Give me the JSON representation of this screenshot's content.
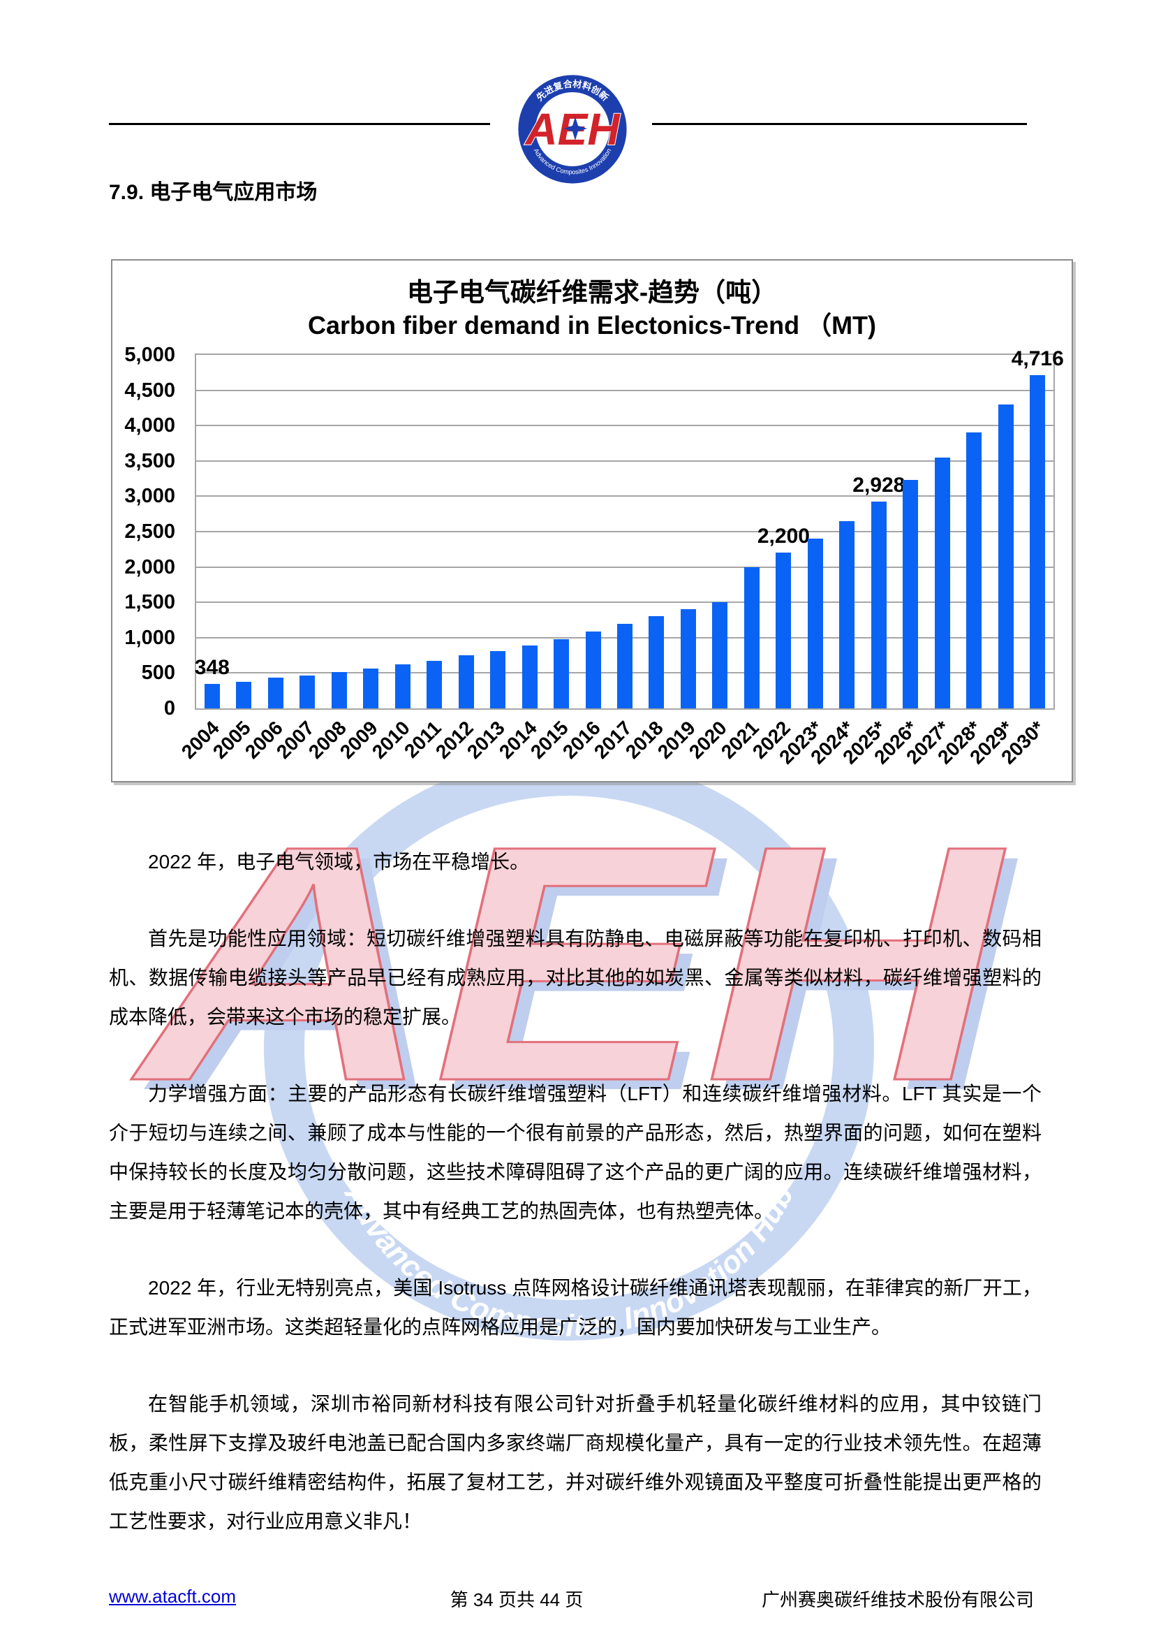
{
  "header": {
    "logo": {
      "text": "AEH",
      "top_arc": "先进复合材料创新",
      "bottom_arc": "Advanced Composites Innovation"
    }
  },
  "page": {
    "heading": "7.9. 电子电气应用市场",
    "paragraphs": [
      "2022 年，电子电气领域，市场在平稳增长。",
      "首先是功能性应用领域：短切碳纤维增强塑料具有防静电、电磁屏蔽等功能在复印机、打印机、数码相机、数据传输电缆接头等产品早已经有成熟应用，对比其他的如炭黑、金属等类似材料，碳纤维增强塑料的成本降低，会带来这个市场的稳定扩展。",
      "力学增强方面：主要的产品形态有长碳纤维增强塑料（LFT）和连续碳纤维增强材料。LFT 其实是一个介于短切与连续之间、兼顾了成本与性能的一个很有前景的产品形态，然后，热塑界面的问题，如何在塑料中保持较长的长度及均匀分散问题，这些技术障碍阻碍了这个产品的更广阔的应用。连续碳纤维增强材料，主要是用于轻薄笔记本的壳体，其中有经典工艺的热固壳体，也有热塑壳体。",
      "2022 年，行业无特别亮点，美国 Isotruss 点阵网格设计碳纤维通讯塔表现靓丽，在菲律宾的新厂开工，正式进军亚洲市场。这类超轻量化的点阵网格应用是广泛的，国内要加快研发与工业生产。",
      "在智能手机领域，深圳市裕同新材科技有限公司针对折叠手机轻量化碳纤维材料的应用，其中铰链门板，柔性屏下支撑及玻纤电池盖已配合国内多家终端厂商规模化量产，具有一定的行业技术领先性。在超薄低克重小尺寸碳纤维精密结构件，拓展了复材工艺，并对碳纤维外观镜面及平整度可折叠性能提出更严格的工艺性要求，对行业应用意义非凡！"
    ]
  },
  "watermark": {
    "letters": "AEH",
    "ring_text": "Advanced Composites Innovation Hub"
  },
  "footer": {
    "url": "www.atacft.com",
    "page_info": "第 34 页共 44 页",
    "company": "广州赛奥碳纤维技术股份有限公司"
  },
  "chart_data": {
    "type": "bar",
    "title_zh": "电子电气碳纤维需求-趋势（吨）",
    "title_en": "Carbon fiber demand in Electonics-Trend （MT)",
    "categories": [
      "2004",
      "2005",
      "2006",
      "2007",
      "2008",
      "2009",
      "2010",
      "2011",
      "2012",
      "2013",
      "2014",
      "2015",
      "2016",
      "2017",
      "2018",
      "2019",
      "2020",
      "2021",
      "2022",
      "2023*",
      "2024*",
      "2025*",
      "2026*",
      "2027*",
      "2028*",
      "2029*",
      "2030*"
    ],
    "values": [
      348,
      380,
      430,
      460,
      510,
      560,
      620,
      670,
      750,
      810,
      890,
      980,
      1090,
      1200,
      1300,
      1400,
      1500,
      2000,
      2200,
      2400,
      2650,
      2928,
      3230,
      3550,
      3900,
      4300,
      4716
    ],
    "value_labels": [
      "348",
      "",
      "",
      "",
      "",
      "",
      "",
      "",
      "",
      "",
      "",
      "",
      "",
      "",
      "",
      "",
      "",
      "",
      "2,200",
      "",
      "",
      "2,928",
      "",
      "",
      "",
      "",
      "4,716"
    ],
    "ylabel": "",
    "xlabel": "",
    "ylim": [
      0,
      5000
    ],
    "ytick_step": 500,
    "grid": true,
    "legend": "none",
    "bar_color": "#0b63f5",
    "grid_color": "#a6a6a6"
  }
}
